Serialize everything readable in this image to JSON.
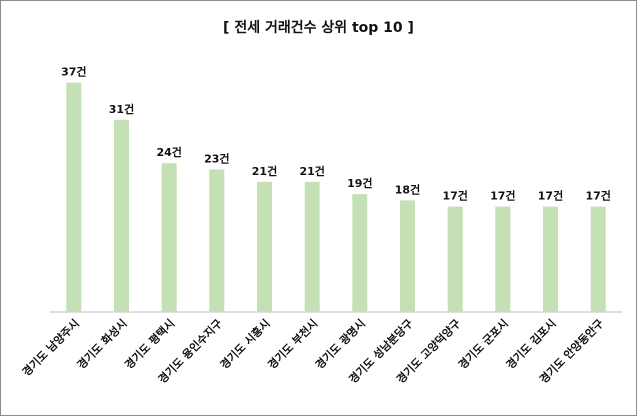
{
  "chart_data": {
    "type": "bar",
    "title": "[ 전세 거래건수 상위 top 10 ]",
    "unit_suffix": "건",
    "categories": [
      "경기도 남양주시",
      "경기도 화성시",
      "경기도 평택시",
      "경기도 용인수지구",
      "경기도 시흥시",
      "경기도 부천시",
      "경기도 광명시",
      "경기도 성남분당구",
      "경기도 고양덕양구",
      "경기도 군포시",
      "경기도 김포시",
      "경기도 안양동안구"
    ],
    "values": [
      37,
      31,
      24,
      23,
      21,
      21,
      19,
      18,
      17,
      17,
      17,
      17
    ],
    "data_labels": [
      "37건",
      "31건",
      "24건",
      "23건",
      "21건",
      "21건",
      "19건",
      "18건",
      "17건",
      "17건",
      "17건",
      "17건"
    ],
    "ylim": [
      0,
      40
    ],
    "grid": false,
    "legend": "none",
    "bar_color": "#c5e0b4",
    "axis_color": "#bfbfbf"
  }
}
